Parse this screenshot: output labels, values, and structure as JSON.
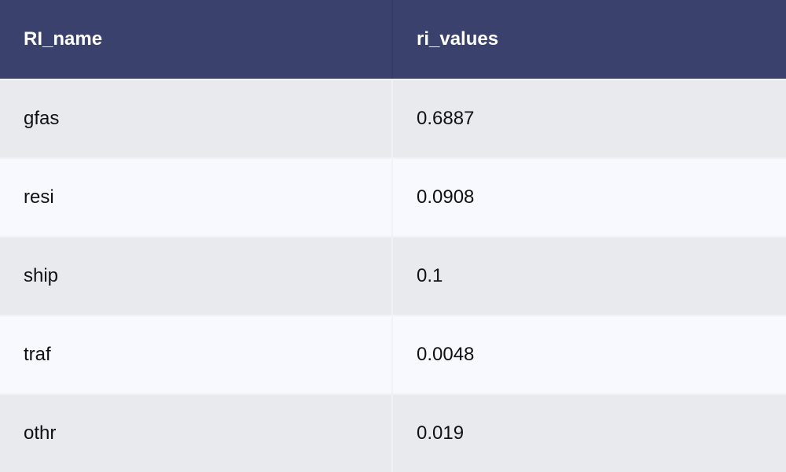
{
  "chart_data": {
    "type": "table",
    "columns": [
      "RI_name",
      "ri_values"
    ],
    "rows": [
      [
        "gfas",
        "0.6887"
      ],
      [
        "resi",
        "0.0908"
      ],
      [
        "ship",
        "0.1"
      ],
      [
        "traf",
        "0.0048"
      ],
      [
        "othr",
        "0.019"
      ]
    ]
  },
  "colors": {
    "header_bg": "#3a416d",
    "row_odd_bg": "#e9eaee",
    "row_even_bg": "#f8f9fe"
  }
}
